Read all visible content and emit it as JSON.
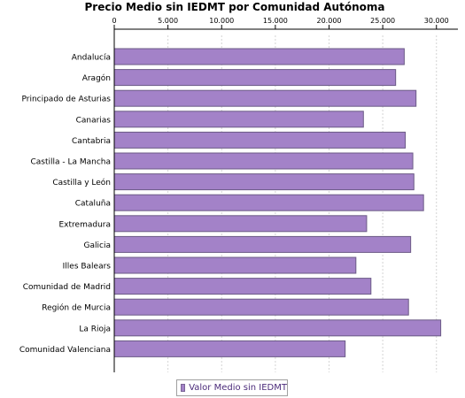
{
  "chart_data": {
    "type": "bar",
    "orientation": "horizontal",
    "title": "Precio Medio sin IEDMT por Comunidad Autónoma",
    "categories": [
      "Andalucía",
      "Aragón",
      "Principado de Asturias",
      "Canarias",
      "Cantabria",
      "Castilla - La Mancha",
      "Castilla y León",
      "Cataluña",
      "Extremadura",
      "Galicia",
      "Illes Balears",
      "Comunidad de Madrid",
      "Región de Murcia",
      "La Rioja",
      "Comunidad Valenciana"
    ],
    "series": [
      {
        "name": "Valor Medio sin IEDMT",
        "values": [
          27000,
          26200,
          28100,
          23200,
          27100,
          27800,
          27900,
          28800,
          23500,
          27600,
          22500,
          23900,
          27400,
          30400,
          21500
        ]
      }
    ],
    "xlim": [
      0,
      32000
    ],
    "xticks": [
      "0",
      "5.000",
      "10.000",
      "15.000",
      "20.000",
      "25.000",
      "30.000"
    ],
    "xtick_values": [
      0,
      5000,
      10000,
      15000,
      20000,
      25000,
      30000
    ],
    "xaxis_position": "top",
    "grid": true,
    "legend_position": "bottom-center",
    "colors": {
      "bar_fill": "#a382c8",
      "bar_stroke": "#6b5a86",
      "grid": "#d4d4d4",
      "legend_text": "#4b2b7a"
    }
  }
}
